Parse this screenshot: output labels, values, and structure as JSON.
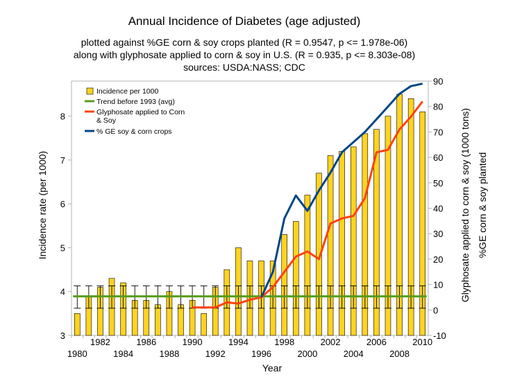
{
  "chart_data": {
    "type": "bar+line",
    "title": "Annual Incidence of Diabetes (age adjusted)",
    "subtitle_lines": [
      "plotted against %GE corn & soy crops planted (R = 0.9547, p <= 1.978e-06)",
      "along with glyphosate applied to corn & soy in U.S. (R = 0.935, p <= 8.303e-08)",
      "sources: USDA:NASS; CDC"
    ],
    "xlabel": "Year",
    "ylabel_left": "Incidence rate (per 1000)",
    "ylabel_right_1": "Glyphosate applied to corn & soy (1000 tons)",
    "ylabel_right_2": "%GE corn & soy planted",
    "years": [
      1980,
      1981,
      1982,
      1983,
      1984,
      1985,
      1986,
      1987,
      1988,
      1989,
      1990,
      1991,
      1992,
      1993,
      1994,
      1995,
      1996,
      1997,
      1998,
      1999,
      2000,
      2001,
      2002,
      2003,
      2004,
      2005,
      2006,
      2007,
      2008,
      2009,
      2010
    ],
    "x_tick_labels_low": [
      "1980",
      "1984",
      "1988",
      "1992",
      "1996",
      "2000",
      "2004",
      "2008"
    ],
    "x_tick_labels_high": [
      "1982",
      "1986",
      "1990",
      "1994",
      "1998",
      "2002",
      "2006",
      "2010"
    ],
    "y_left_ticks": [
      "3",
      "4",
      "5",
      "6",
      "7",
      "8"
    ],
    "y_left_range": [
      3,
      8.8
    ],
    "y_right_ticks": [
      "-10",
      "0",
      "10",
      "20",
      "30",
      "40",
      "50",
      "60",
      "70",
      "80",
      "90"
    ],
    "y_right_range": [
      -10,
      90
    ],
    "incidence": [
      3.5,
      3.9,
      4.1,
      4.3,
      4.2,
      3.8,
      3.8,
      3.7,
      4.0,
      3.7,
      3.8,
      3.5,
      4.1,
      4.5,
      5.0,
      4.7,
      4.7,
      4.7,
      5.3,
      5.6,
      6.2,
      6.7,
      7.1,
      7.2,
      7.3,
      7.6,
      7.7,
      8.0,
      8.5,
      8.4,
      8.1
    ],
    "error_bar_range": [
      3.62,
      4.13
    ],
    "trend_before_1993": 3.89,
    "glyphosate": [
      null,
      null,
      null,
      null,
      null,
      null,
      null,
      null,
      null,
      null,
      1,
      1,
      1,
      3,
      2.5,
      4,
      5,
      9,
      15,
      21,
      23,
      20,
      34,
      36,
      37,
      44,
      62,
      63,
      71,
      76,
      82
    ],
    "ge_percent": [
      null,
      null,
      null,
      null,
      null,
      null,
      null,
      null,
      null,
      null,
      null,
      null,
      null,
      null,
      null,
      null,
      5,
      15,
      36,
      45,
      39,
      47,
      54,
      62,
      66,
      70,
      75,
      80,
      85,
      88,
      89
    ],
    "colors": {
      "incidence": "#ffd320",
      "trend": "#579d1c",
      "glyphosate": "#ff420e",
      "ge": "#004586",
      "glyph_axis_label": "#ff0000",
      "ge_axis_label": "#1f4e8c"
    },
    "legend": {
      "placement": "top-left",
      "incidence": "Incidence per 1000",
      "trend": "Trend before 1993 (avg)",
      "glyphosate_line1": "Glyphosate applied to Corn",
      "glyphosate_line2": "& Soy",
      "ge": "% GE soy & corn crops"
    }
  }
}
